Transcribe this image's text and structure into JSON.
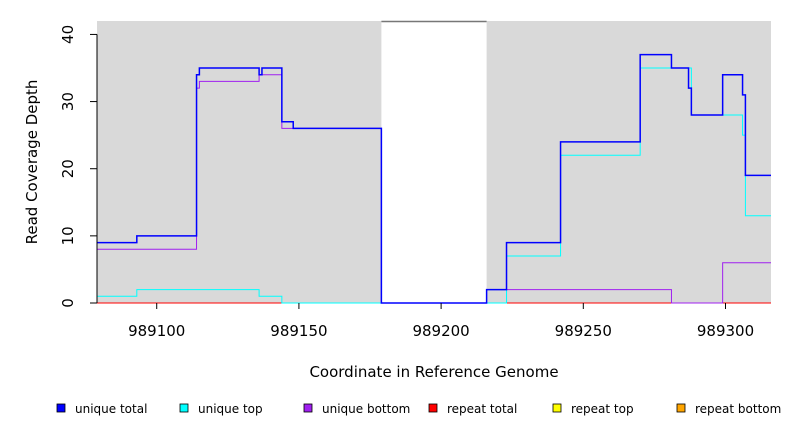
{
  "chart_data": {
    "type": "line",
    "step": true,
    "xlabel": "Coordinate in Reference Genome",
    "ylabel": "Read Coverage Depth",
    "xlim": [
      989079,
      989316
    ],
    "ylim": [
      0,
      42
    ],
    "x_ticks": [
      989100,
      989150,
      989200,
      989250,
      989300
    ],
    "y_ticks": [
      0,
      10,
      20,
      30,
      40
    ],
    "background": "#d9d9d9",
    "uncovered_regions": [
      [
        989179,
        989216
      ]
    ],
    "legend_position": "bottom",
    "series": [
      {
        "name": "unique total",
        "color": "#0000ff",
        "points": [
          [
            989079,
            9
          ],
          [
            989093,
            10
          ],
          [
            989114,
            34
          ],
          [
            989115,
            35
          ],
          [
            989136,
            34
          ],
          [
            989137,
            35
          ],
          [
            989144,
            27
          ],
          [
            989148,
            26
          ],
          [
            989179,
            0
          ],
          [
            989216,
            2
          ],
          [
            989223,
            9
          ],
          [
            989242,
            24
          ],
          [
            989270,
            37
          ],
          [
            989281,
            35
          ],
          [
            989287,
            32
          ],
          [
            989288,
            28
          ],
          [
            989299,
            34
          ],
          [
            989306,
            31
          ],
          [
            989307,
            19
          ],
          [
            989316,
            19
          ]
        ]
      },
      {
        "name": "unique top",
        "color": "#00ffff",
        "points": [
          [
            989079,
            1
          ],
          [
            989093,
            2
          ],
          [
            989136,
            1
          ],
          [
            989144,
            0
          ],
          [
            989223,
            7
          ],
          [
            989242,
            22
          ],
          [
            989270,
            35
          ],
          [
            989288,
            28
          ],
          [
            989306,
            25
          ],
          [
            989307,
            13
          ],
          [
            989316,
            13
          ]
        ]
      },
      {
        "name": "unique bottom",
        "color": "#a020f0",
        "points": [
          [
            989079,
            8
          ],
          [
            989114,
            32
          ],
          [
            989115,
            33
          ],
          [
            989136,
            34
          ],
          [
            989144,
            26
          ],
          [
            989179,
            0
          ],
          [
            989223,
            2
          ],
          [
            989281,
            0
          ],
          [
            989299,
            6
          ],
          [
            989316,
            6
          ]
        ]
      },
      {
        "name": "repeat total",
        "color": "#ff0000",
        "points": [
          [
            989079,
            0
          ],
          [
            989316,
            0
          ]
        ]
      },
      {
        "name": "repeat top",
        "color": "#ffff00",
        "points": [
          [
            989079,
            0
          ],
          [
            989316,
            0
          ]
        ]
      },
      {
        "name": "repeat bottom",
        "color": "#ffa500",
        "points": [
          [
            989079,
            0
          ],
          [
            989316,
            0
          ]
        ]
      }
    ]
  }
}
